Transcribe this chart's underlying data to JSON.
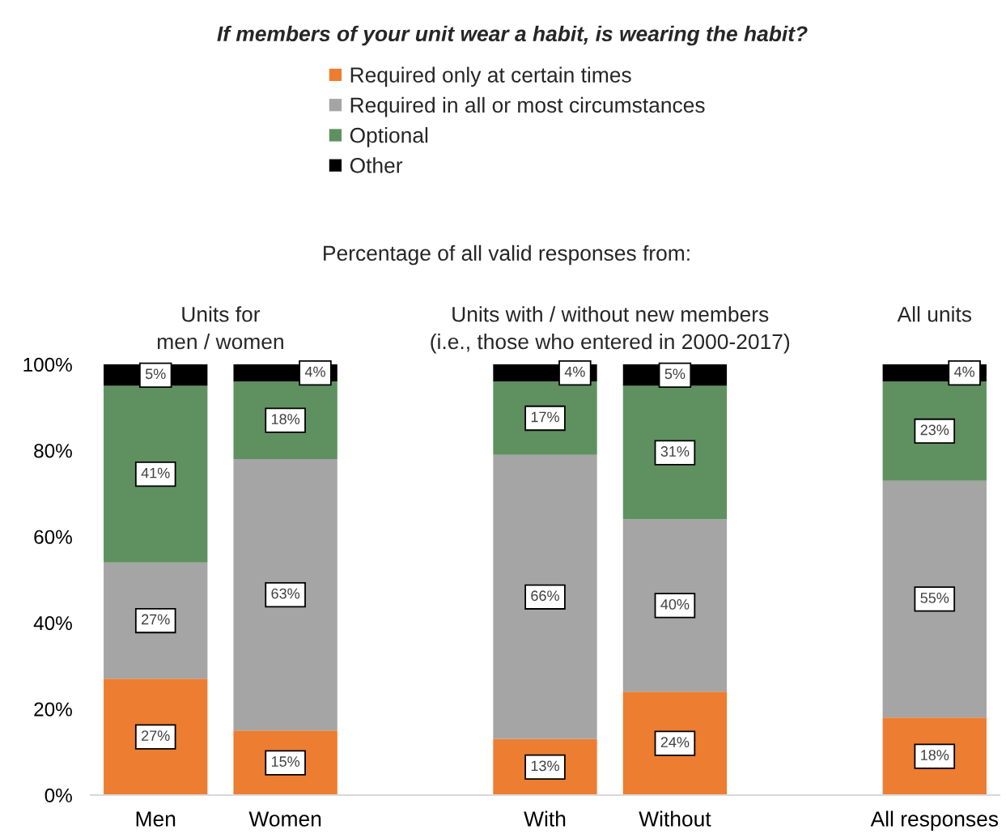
{
  "chart_data": {
    "type": "bar",
    "stacked": true,
    "title": "If members of your unit wear a habit, is wearing the habit?",
    "subtitle": "Percentage of all valid responses from:",
    "annotations": [
      "Units for\nmen / women",
      "Units with / without new members\n(i.e., those who entered in 2000-2017)",
      "All units"
    ],
    "categories": [
      "Men",
      "Women",
      null,
      "With",
      "Without",
      null,
      "All responses"
    ],
    "series": [
      {
        "name": "Required only at certain times",
        "color": "#ed7d31",
        "values": [
          27,
          15,
          null,
          13,
          24,
          null,
          18
        ],
        "value_labels": [
          "27%",
          "15%",
          null,
          "13%",
          "24%",
          null,
          "18%"
        ]
      },
      {
        "name": "Required in all or most circumstances",
        "color": "#a5a5a5",
        "values": [
          27,
          63,
          null,
          66,
          40,
          null,
          55
        ],
        "value_labels": [
          "27%",
          "63%",
          null,
          "66%",
          "40%",
          null,
          "55%"
        ]
      },
      {
        "name": "Optional",
        "color": "#5f9160",
        "values": [
          41,
          18,
          null,
          17,
          31,
          null,
          23
        ],
        "value_labels": [
          "41%",
          "18%",
          null,
          "17%",
          "31%",
          null,
          "23%"
        ]
      },
      {
        "name": "Other",
        "color": "#000000",
        "values": [
          5,
          4,
          null,
          4,
          5,
          null,
          4
        ],
        "value_labels": [
          "5%",
          "4%",
          null,
          "4%",
          "5%",
          null,
          "4%"
        ]
      }
    ],
    "ylim": [
      0,
      100
    ],
    "yticks": [
      {
        "value": 0,
        "label": "0%"
      },
      {
        "value": 20,
        "label": "20%"
      },
      {
        "value": 40,
        "label": "40%"
      },
      {
        "value": 60,
        "label": "60%"
      },
      {
        "value": 80,
        "label": "80%"
      },
      {
        "value": 100,
        "label": "100%"
      }
    ],
    "legend": "top"
  }
}
